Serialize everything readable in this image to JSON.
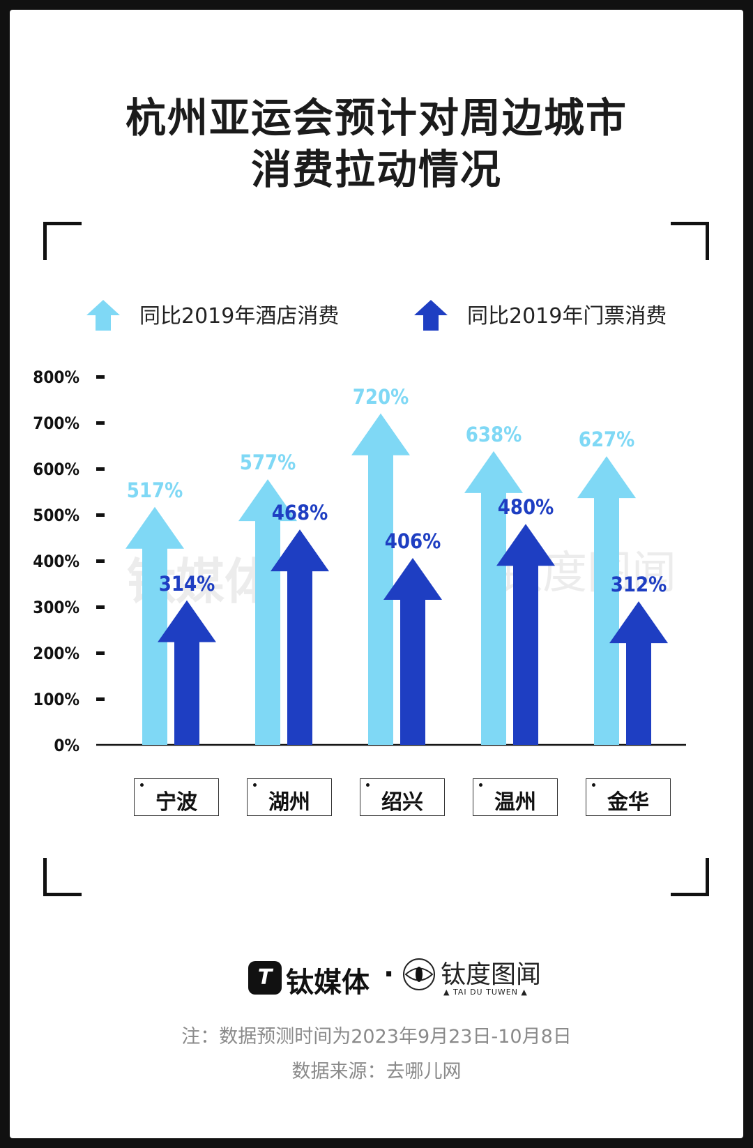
{
  "title_line1": "杭州亚运会预计对周边城市",
  "title_line2": "消费拉动情况",
  "colors": {
    "hotel": "#7fd8f5",
    "ticket": "#1e3ec2"
  },
  "watermarks": {
    "left": "钛媒体",
    "right": "钛度图闻"
  },
  "chart_data": {
    "type": "bar",
    "title": "杭州亚运会预计对周边城市消费拉动情况",
    "categories": [
      "宁波",
      "湖州",
      "绍兴",
      "温州",
      "金华"
    ],
    "series": [
      {
        "name": "同比2019年酒店消费",
        "values": [
          517,
          577,
          720,
          638,
          627
        ],
        "labels": [
          "517%",
          "577%",
          "720%",
          "638%",
          "627%"
        ],
        "color": "#7fd8f5"
      },
      {
        "name": "同比2019年门票消费",
        "values": [
          314,
          468,
          406,
          480,
          312
        ],
        "labels": [
          "314%",
          "468%",
          "406%",
          "480%",
          "312%"
        ],
        "color": "#1e3ec2"
      }
    ],
    "ylim": [
      0,
      800
    ],
    "yticks": [
      "0%",
      "100%",
      "200%",
      "300%",
      "400%",
      "500%",
      "600%",
      "700%",
      "800%"
    ],
    "legend_position": "top",
    "grid": false,
    "mark": "arrow"
  },
  "footer": {
    "brand1": "钛媒体",
    "separator": "·",
    "brand2": "钛度图闻",
    "brand2_sub": "▲ TAI DU TUWEN ▲",
    "note": "注：数据预测时间为2023年9月23日-10月8日",
    "source": "数据来源：去哪儿网"
  }
}
